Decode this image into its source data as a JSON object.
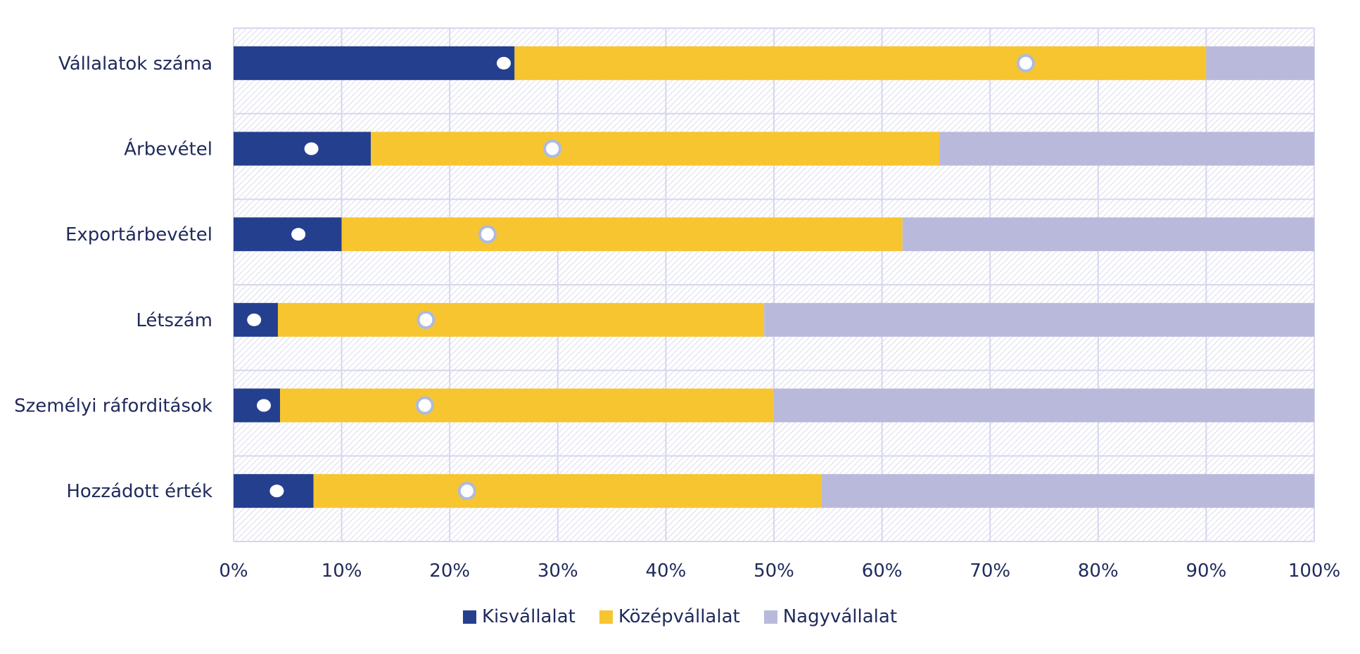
{
  "chart_data": {
    "type": "bar",
    "orientation": "horizontal",
    "stacked": true,
    "percent": true,
    "categories": [
      "Vállalatok száma",
      "Árbevétel",
      "Exportárbevétel",
      "Létszám",
      "Személyi ráforditások",
      "Hozzádott érték"
    ],
    "series": [
      {
        "name": "Kisvállalat",
        "color": "#253f8f",
        "values": [
          26,
          12.7,
          10,
          4.1,
          4.3,
          7.4
        ]
      },
      {
        "name": "Középvállalat",
        "color": "#f6c530",
        "values": [
          64,
          52.6,
          51.9,
          45,
          45.7,
          47
        ]
      },
      {
        "name": "Nagyvállalat",
        "color": "#b9badb",
        "values": [
          10,
          34.7,
          38.1,
          50.9,
          50,
          45.6
        ]
      }
    ],
    "markers": [
      {
        "name": "Kisvállalat",
        "style": "filled-white-dot",
        "values": [
          25,
          7.2,
          6,
          1.9,
          2.8,
          4
        ]
      },
      {
        "name": "Középvállalat",
        "style": "hollow-ring",
        "values": [
          73.3,
          29.5,
          23.5,
          17.8,
          17.7,
          21.6
        ]
      }
    ],
    "xlim": [
      0,
      100
    ],
    "xticks": [
      "0%",
      "10%",
      "20%",
      "30%",
      "40%",
      "50%",
      "60%",
      "70%",
      "80%",
      "90%",
      "100%"
    ],
    "grid": true,
    "legend_position": "bottom",
    "title": "",
    "xlabel": "",
    "ylabel": ""
  },
  "colors": {
    "grid": "#d6d6ee",
    "hatch": "#dcdcee",
    "text": "#1f2a5c",
    "marker_ring": "#aebadf"
  }
}
